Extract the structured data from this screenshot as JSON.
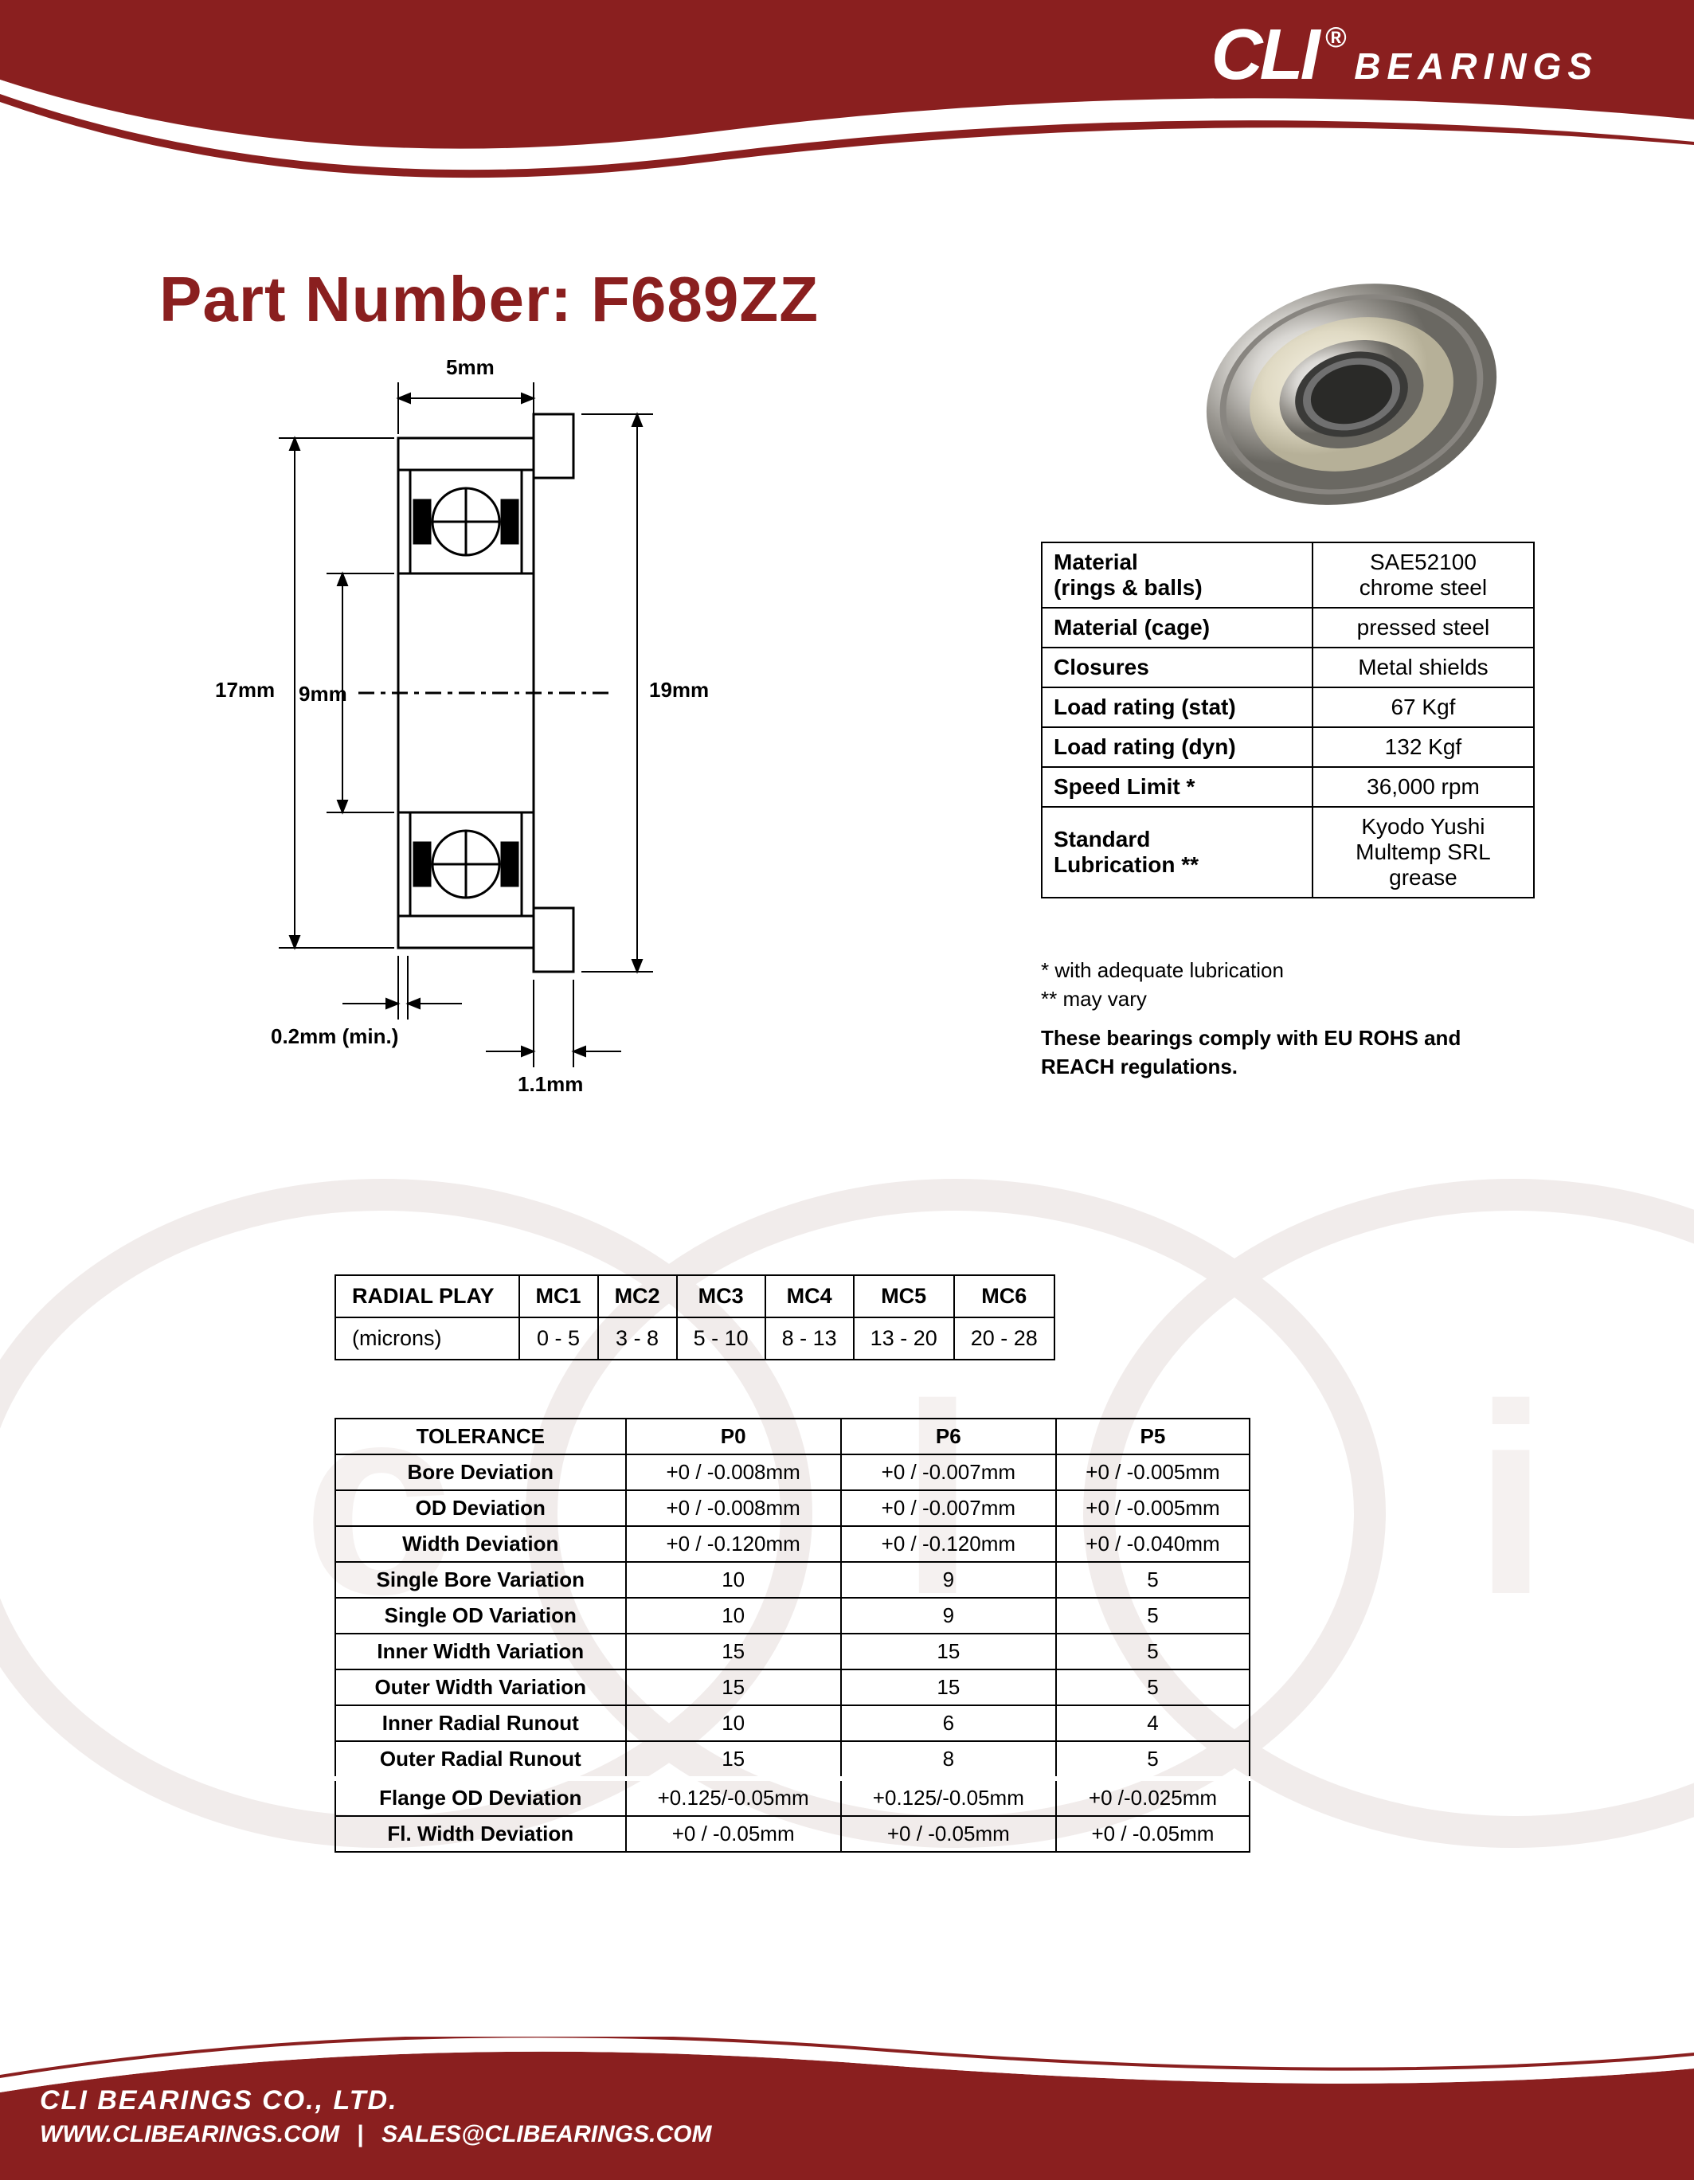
{
  "brand": {
    "cli": "CLI",
    "registered": "®",
    "bearings": "BEARINGS",
    "header_color": "#8a1f1f",
    "header_dark": "#6e1515"
  },
  "title": {
    "prefix": "Part Number: ",
    "part": "F689ZZ",
    "color": "#8a1f1f"
  },
  "diagram": {
    "dims": {
      "width_top": "5mm",
      "od": "17mm",
      "id": "9mm",
      "flange_od": "19mm",
      "chamfer": "0.2mm (min.)",
      "flange_w": "1.1mm"
    }
  },
  "spec": {
    "rows": [
      {
        "label": "Material\n(rings & balls)",
        "value": "SAE52100\nchrome steel"
      },
      {
        "label": "Material (cage)",
        "value": "pressed steel"
      },
      {
        "label": "Closures",
        "value": "Metal shields"
      },
      {
        "label": "Load rating (stat)",
        "value": "67 Kgf"
      },
      {
        "label": "Load rating (dyn)",
        "value": "132 Kgf"
      },
      {
        "label": "Speed Limit *",
        "value": "36,000 rpm"
      },
      {
        "label": "Standard\nLubrication  **",
        "value": "Kyodo Yushi\nMultemp SRL grease"
      }
    ],
    "note1": "  * with adequate lubrication",
    "note2": "** may vary",
    "compliance": "These bearings comply with EU ROHS and REACH  regulations."
  },
  "radial": {
    "header": "RADIAL PLAY",
    "unit": "(microns)",
    "cols": [
      "MC1",
      "MC2",
      "MC3",
      "MC4",
      "MC5",
      "MC6"
    ],
    "vals": [
      "0 - 5",
      "3 - 8",
      "5 - 10",
      "8 - 13",
      "13 - 20",
      "20 - 28"
    ]
  },
  "tolerance": {
    "header": "TOLERANCE",
    "cols": [
      "P0",
      "P6",
      "P5"
    ],
    "rows": [
      {
        "label": "Bore Deviation",
        "v": [
          "+0 / -0.008mm",
          "+0 / -0.007mm",
          "+0 / -0.005mm"
        ]
      },
      {
        "label": "OD Deviation",
        "v": [
          "+0 / -0.008mm",
          "+0 / -0.007mm",
          "+0 / -0.005mm"
        ]
      },
      {
        "label": "Width Deviation",
        "v": [
          "+0 / -0.120mm",
          "+0 / -0.120mm",
          "+0 / -0.040mm"
        ]
      },
      {
        "label": "Single Bore Variation",
        "v": [
          "10",
          "9",
          "5"
        ]
      },
      {
        "label": "Single OD Variation",
        "v": [
          "10",
          "9",
          "5"
        ]
      },
      {
        "label": "Inner Width Variation",
        "v": [
          "15",
          "15",
          "5"
        ]
      },
      {
        "label": "Outer Width Variation",
        "v": [
          "15",
          "15",
          "5"
        ]
      },
      {
        "label": "Inner Radial Runout",
        "v": [
          "10",
          "6",
          "4"
        ]
      },
      {
        "label": "Outer Radial Runout",
        "v": [
          "15",
          "8",
          "5"
        ]
      }
    ],
    "rows2": [
      {
        "label": "Flange OD Deviation",
        "v": [
          "+0.125/-0.05mm",
          "+0.125/-0.05mm",
          "+0 /-0.025mm"
        ]
      },
      {
        "label": "Fl. Width Deviation",
        "v": [
          "+0 / -0.05mm",
          "+0 / -0.05mm",
          "+0 / -0.05mm"
        ]
      }
    ]
  },
  "footer": {
    "company": "CLI BEARINGS CO., LTD.",
    "url": "WWW.CLIBEARINGS.COM",
    "sep": "|",
    "email": "SALES@CLIBEARINGS.COM"
  }
}
